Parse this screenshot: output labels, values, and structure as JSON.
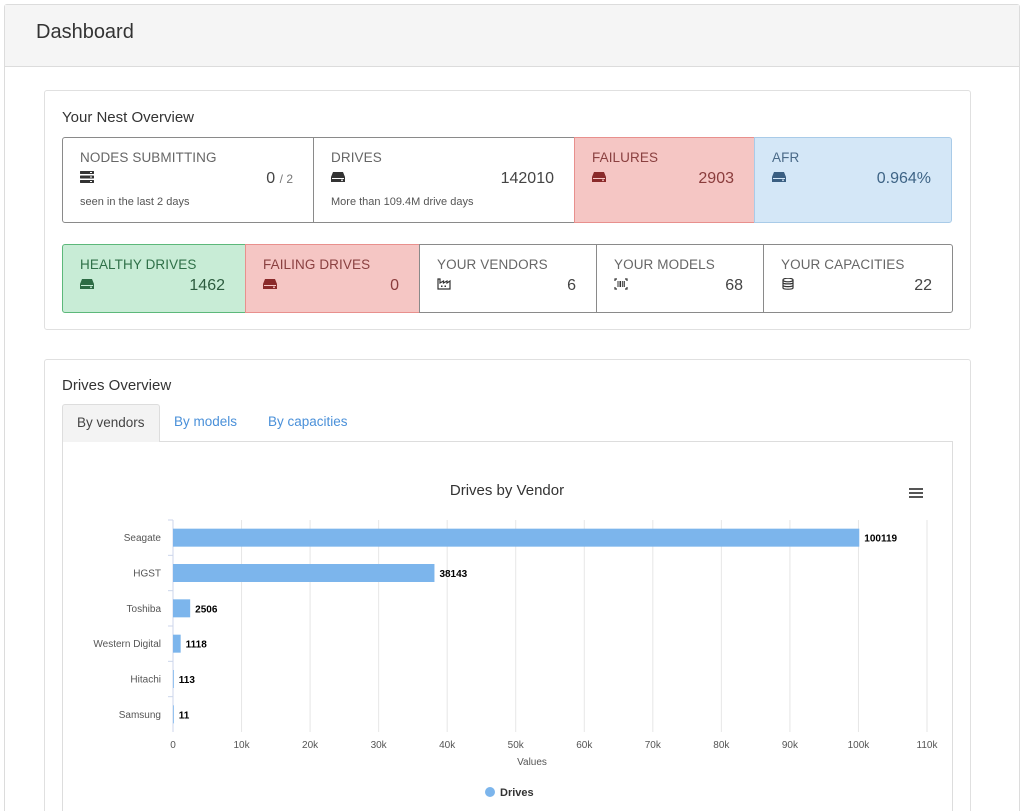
{
  "page": {
    "title": "Dashboard"
  },
  "overview": {
    "title": "Your Nest Overview",
    "nodes": {
      "label": "NODES SUBMITTING",
      "value": "0",
      "denominator": "/ 2",
      "sub": "seen in the last 2 days"
    },
    "drives": {
      "label": "DRIVES",
      "value": "142010",
      "sub": "More than 109.4M drive days"
    },
    "failures": {
      "label": "FAILURES",
      "value": "2903"
    },
    "afr": {
      "label": "AFR",
      "value": "0.964%"
    },
    "healthy": {
      "label": "HEALTHY DRIVES",
      "value": "1462"
    },
    "failing": {
      "label": "FAILING DRIVES",
      "value": "0"
    },
    "vendors": {
      "label": "YOUR VENDORS",
      "value": "6"
    },
    "models": {
      "label": "YOUR MODELS",
      "value": "68"
    },
    "capacities": {
      "label": "YOUR CAPACITIES",
      "value": "22"
    }
  },
  "drives_overview": {
    "title": "Drives Overview",
    "tabs": [
      {
        "label": "By vendors",
        "active": true
      },
      {
        "label": "By models",
        "active": false
      },
      {
        "label": "By capacities",
        "active": false
      }
    ]
  },
  "colors": {
    "bar": "#7cb5ec",
    "failure_bg": "#f5c6c4",
    "afr_bg": "#d4e7f7",
    "healthy_bg": "#c8ecd6",
    "link": "#4a90d9"
  },
  "chart_data": {
    "type": "bar",
    "orientation": "horizontal",
    "title": "Drives by Vendor",
    "xlabel": "Values",
    "ylabel": "",
    "categories": [
      "Seagate",
      "HGST",
      "Toshiba",
      "Western Digital",
      "Hitachi",
      "Samsung"
    ],
    "series": [
      {
        "name": "Drives",
        "values": [
          100119,
          38143,
          2506,
          1118,
          113,
          11
        ]
      }
    ],
    "xlim": [
      0,
      110000
    ],
    "ticks": [
      "0",
      "10k",
      "20k",
      "30k",
      "40k",
      "50k",
      "60k",
      "70k",
      "80k",
      "90k",
      "100k",
      "110k"
    ],
    "grid": true,
    "legend": "bottom-center",
    "data_labels": true
  }
}
